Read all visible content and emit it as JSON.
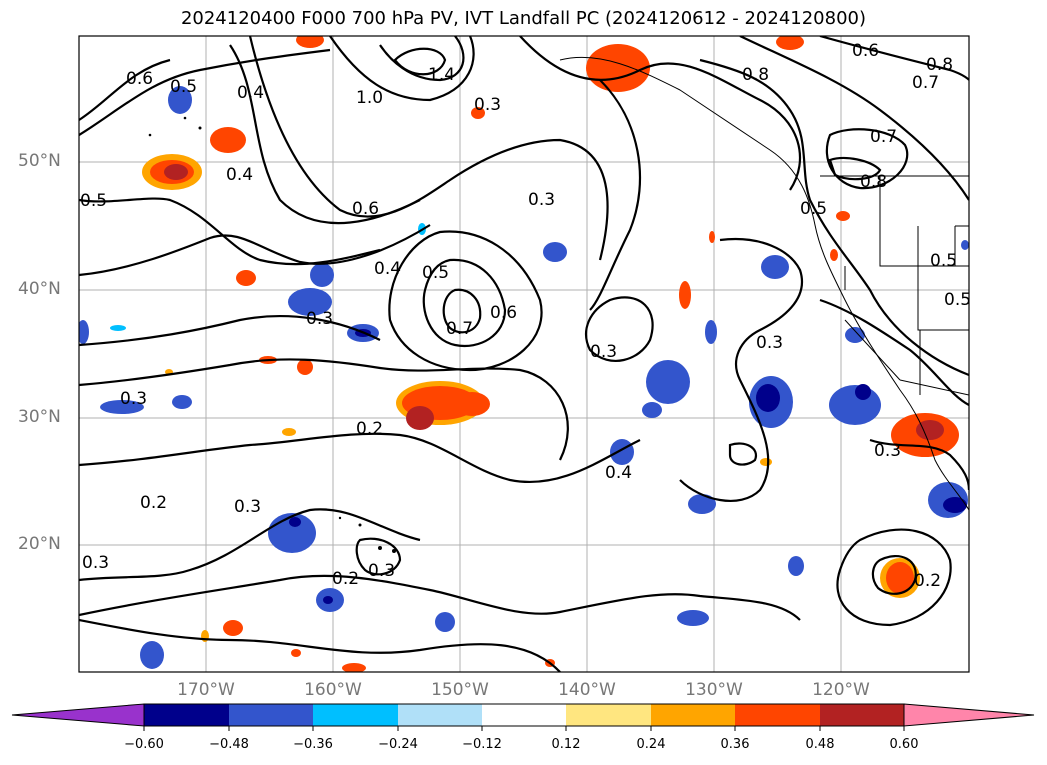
{
  "title": "2024120400 F000 700 hPa PV, IVT Landfall PC (2024120612 - 2024120800)",
  "map": {
    "lat_labels": [
      "50°N",
      "40°N",
      "30°N",
      "20°N"
    ],
    "lon_labels": [
      "170°W",
      "160°W",
      "150°W",
      "140°W",
      "130°W",
      "120°W"
    ],
    "contour_labels": [
      "0.6",
      "0.5",
      "0.4",
      "1.4",
      "1.0",
      "0.8",
      "0.6",
      "0.7",
      "0.8",
      "0.4",
      "0.5",
      "0.6",
      "0.3",
      "0.4",
      "0.5",
      "0.7",
      "0.6",
      "0.3",
      "0.3",
      "0.7",
      "0.8",
      "0.5",
      "0.5",
      "0.5",
      "0.3",
      "0.3",
      "0.3",
      "0.2",
      "0.2",
      "0.3",
      "0.4",
      "0.3",
      "0.2",
      "0.3",
      "0.2",
      "0.3"
    ]
  },
  "colorbar": {
    "ticks": [
      "−0.60",
      "−0.48",
      "−0.36",
      "−0.24",
      "−0.12",
      "0.12",
      "0.24",
      "0.36",
      "0.48",
      "0.60"
    ],
    "colors": [
      "#9932cc",
      "#00008b",
      "#3355cc",
      "#00bfff",
      "#b0e0f8",
      "#ffffff",
      "#ffe680",
      "#ffa500",
      "#ff4500",
      "#b22222",
      "#ff85aa"
    ]
  }
}
